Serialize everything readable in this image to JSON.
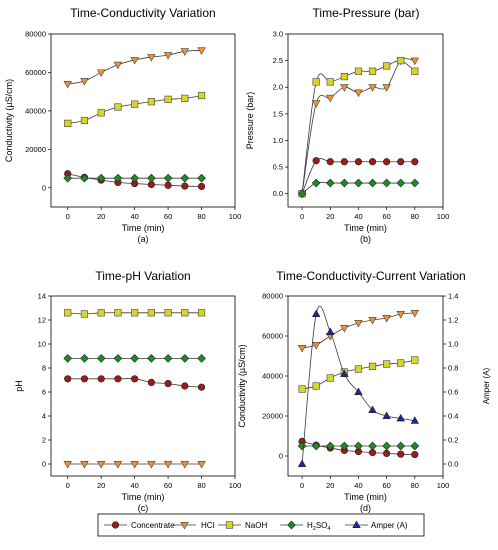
{
  "colors": {
    "concentrate": "#9e1b1b",
    "hcl": "#f5922f",
    "naoh": "#d6d629",
    "h2so4": "#1f8a2a",
    "amper": "#1a2aa0",
    "line": "#3a3a3a"
  },
  "legend": {
    "position": "bottom",
    "items": [
      {
        "key": "concentrate",
        "label": "Concentrate",
        "marker": "circle"
      },
      {
        "key": "hcl",
        "label": "HCl",
        "marker": "triangle-down"
      },
      {
        "key": "naoh",
        "label": "NaOH",
        "marker": "square"
      },
      {
        "key": "h2so4",
        "label": "H2SO4",
        "marker": "diamond"
      },
      {
        "key": "amper",
        "label": "Amper (A)",
        "marker": "triangle-up"
      }
    ]
  },
  "chart_data": [
    {
      "type": "line",
      "title": "Time-Conductivity Variation",
      "xlabel": "Time (min)",
      "ylabel": "Conductivity (µS/cm)",
      "caption": "(a)",
      "xlim": [
        -10,
        100
      ],
      "ylim": [
        -10000,
        80000
      ],
      "xticks": [
        0,
        20,
        40,
        60,
        80,
        100
      ],
      "yticks": [
        0,
        20000,
        40000,
        60000,
        80000
      ],
      "x": [
        0,
        10,
        20,
        30,
        40,
        50,
        60,
        70,
        80
      ],
      "series": [
        {
          "key": "concentrate",
          "values": [
            7300,
            5400,
            4000,
            2800,
            2200,
            1700,
            1300,
            900,
            700
          ]
        },
        {
          "key": "hcl",
          "values": [
            54000,
            55500,
            60000,
            64000,
            66500,
            68000,
            69000,
            71000,
            71500
          ]
        },
        {
          "key": "naoh",
          "values": [
            33500,
            35000,
            39000,
            42000,
            43500,
            44800,
            46000,
            46500,
            48000
          ]
        },
        {
          "key": "h2so4",
          "values": [
            5000,
            5000,
            5000,
            5000,
            5000,
            5000,
            5000,
            5000,
            5000
          ]
        }
      ]
    },
    {
      "type": "line",
      "title": "Time-Pressure (bar)",
      "xlabel": "Time (min)",
      "ylabel": "Pressure (bar)",
      "caption": "(b)",
      "xlim": [
        -10,
        100
      ],
      "ylim": [
        -0.25,
        3.0
      ],
      "xticks": [
        0,
        20,
        40,
        60,
        80,
        100
      ],
      "yticks": [
        0.0,
        0.5,
        1.0,
        1.5,
        2.0,
        2.5,
        3.0
      ],
      "x": [
        0,
        10,
        20,
        30,
        40,
        50,
        60,
        70,
        80
      ],
      "series": [
        {
          "key": "concentrate",
          "values": [
            0,
            0.62,
            0.6,
            0.6,
            0.6,
            0.6,
            0.6,
            0.6,
            0.6
          ]
        },
        {
          "key": "hcl",
          "values": [
            0,
            1.7,
            1.8,
            2.0,
            1.9,
            2.0,
            2.0,
            2.5,
            2.5
          ]
        },
        {
          "key": "naoh",
          "values": [
            0,
            2.1,
            2.1,
            2.2,
            2.3,
            2.3,
            2.4,
            2.5,
            2.3
          ]
        },
        {
          "key": "h2so4",
          "values": [
            0,
            0.2,
            0.2,
            0.2,
            0.2,
            0.2,
            0.2,
            0.2,
            0.2
          ]
        }
      ]
    },
    {
      "type": "line",
      "title": "Time-pH Variation",
      "xlabel": "Time (min)",
      "ylabel": "pH",
      "caption": "(c)",
      "xlim": [
        -10,
        100
      ],
      "ylim": [
        -1,
        14
      ],
      "xticks": [
        0,
        20,
        40,
        60,
        80,
        100
      ],
      "yticks": [
        0,
        2,
        4,
        6,
        8,
        10,
        12,
        14
      ],
      "x": [
        0,
        10,
        20,
        30,
        40,
        50,
        60,
        70,
        80
      ],
      "series": [
        {
          "key": "concentrate",
          "values": [
            7.1,
            7.1,
            7.1,
            7.1,
            7.1,
            6.8,
            6.7,
            6.5,
            6.4
          ]
        },
        {
          "key": "hcl",
          "values": [
            0,
            0,
            0,
            0,
            0,
            0,
            0,
            0,
            0
          ]
        },
        {
          "key": "naoh",
          "values": [
            12.6,
            12.5,
            12.6,
            12.6,
            12.6,
            12.6,
            12.6,
            12.6,
            12.6
          ]
        },
        {
          "key": "h2so4",
          "values": [
            8.8,
            8.8,
            8.8,
            8.8,
            8.8,
            8.8,
            8.8,
            8.8,
            8.8
          ]
        }
      ]
    },
    {
      "type": "line",
      "title": "Time-Conductivity-Current Variation",
      "xlabel": "Time (min)",
      "ylabel": "Conductivity (µS/cm)",
      "y2label": "Amper (A)",
      "caption": "(d)",
      "xlim": [
        -10,
        100
      ],
      "ylim": [
        -10000,
        80000
      ],
      "y2lim": [
        -0.1,
        1.4
      ],
      "xticks": [
        0,
        20,
        40,
        60,
        80,
        100
      ],
      "yticks": [
        0,
        20000,
        40000,
        60000,
        80000
      ],
      "y2ticks": [
        0.0,
        0.2,
        0.4,
        0.6,
        0.8,
        1.0,
        1.2,
        1.4
      ],
      "x": [
        0,
        10,
        20,
        30,
        40,
        50,
        60,
        70,
        80
      ],
      "series": [
        {
          "key": "concentrate",
          "values": [
            7300,
            5400,
            4000,
            2800,
            2200,
            1700,
            1300,
            900,
            700
          ]
        },
        {
          "key": "hcl",
          "values": [
            54000,
            55500,
            60000,
            64000,
            66500,
            68000,
            69000,
            71000,
            71500
          ]
        },
        {
          "key": "naoh",
          "values": [
            33500,
            35000,
            39000,
            42000,
            43500,
            44800,
            46000,
            46500,
            48000
          ]
        },
        {
          "key": "h2so4",
          "values": [
            5000,
            5000,
            5000,
            5000,
            5000,
            5000,
            5000,
            5000,
            5000
          ]
        }
      ],
      "series_y2": [
        {
          "key": "amper",
          "x": [
            0,
            10,
            20,
            30,
            40,
            50,
            60,
            70,
            80
          ],
          "values": [
            0.0,
            1.25,
            1.1,
            0.75,
            0.6,
            0.45,
            0.4,
            0.38,
            0.36
          ]
        }
      ]
    }
  ]
}
